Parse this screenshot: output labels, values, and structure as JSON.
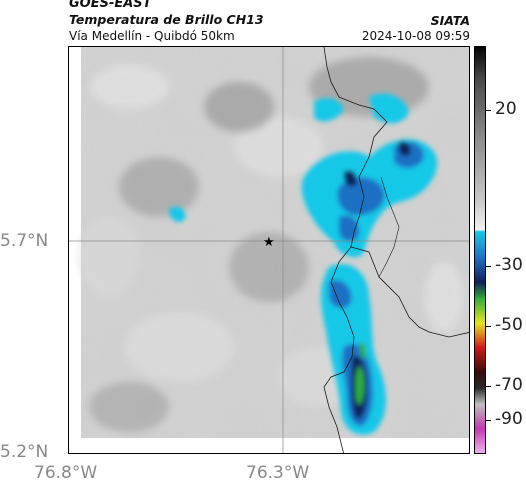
{
  "header": {
    "satellite": "GOES-EAST",
    "product": "Temperatura de Brillo CH13",
    "region": "Vía Medellín - Quibdó 50km",
    "agency": "SIATA",
    "datetime": "2024-10-08 09:59"
  },
  "map": {
    "lat_labels": [
      "5.7°N",
      "5.2°N"
    ],
    "lon_labels": [
      "76.8°W",
      "76.3°W"
    ],
    "marker": "star-icon"
  },
  "colorbar": {
    "ticks": [
      "20",
      "-30",
      "-50",
      "-70",
      "-90"
    ],
    "colors": {
      "warm_light": "#dcdcdc",
      "warm_mid": "#a8a8a8",
      "cyan": "#19c8e8",
      "blue": "#1f6fc4",
      "navy": "#10205a",
      "green": "#2fae3a",
      "yellow": "#e6e61e",
      "red": "#d21a1a",
      "magenta": "#c03ab0"
    }
  }
}
